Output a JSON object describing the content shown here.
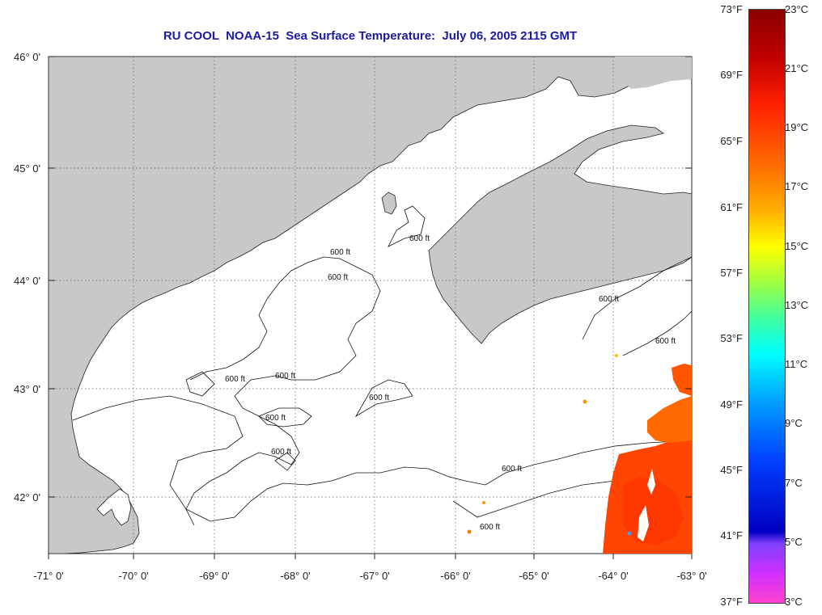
{
  "title": "RU COOL  NOAA-15  Sea Surface Temperature:  July 06, 2005 2115 GMT",
  "lat_labels": [
    "46° 0'",
    "45° 0'",
    "44° 0'",
    "43° 0'",
    "42° 0'"
  ],
  "lon_labels": [
    "-71° 0'",
    "-70° 0'",
    "-69° 0'",
    "-68° 0'",
    "-67° 0'",
    "-66° 0'",
    "-65° 0'",
    "-64° 0'",
    "-63° 0'"
  ],
  "isobath_label": "600 ft",
  "colorbar": {
    "fahrenheit": [
      "73°F",
      "69°F",
      "65°F",
      "61°F",
      "57°F",
      "53°F",
      "49°F",
      "45°F",
      "41°F",
      "37°F"
    ],
    "celsius": [
      "23°C",
      "21°C",
      "19°C",
      "17°C",
      "15°C",
      "13°C",
      "11°C",
      "9°C",
      "7°C",
      "5°C",
      "3°C"
    ]
  },
  "colors": {
    "land": "#c8c8c8",
    "ocean": "#ffffff",
    "title": "#1a1aa6",
    "sst_warm": "#ff4500"
  }
}
